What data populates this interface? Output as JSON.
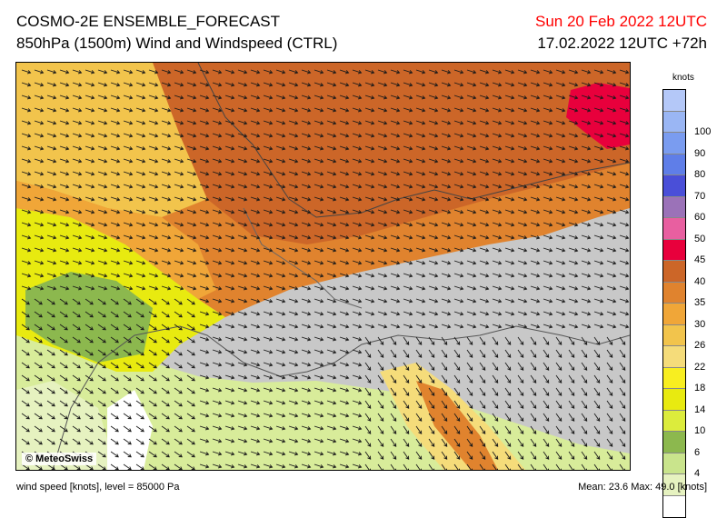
{
  "header": {
    "title_line1": "COSMO-2E ENSEMBLE_FORECAST",
    "title_line2": "850hPa (1500m) Wind and Windspeed (CTRL)",
    "valid_time": "Sun 20 Feb 2022 12UTC",
    "run_info": "17.02.2022 12UTC +72h"
  },
  "map": {
    "credit": "© MeteoSwiss"
  },
  "legend": {
    "unit": "knots",
    "levels": [
      {
        "label": "",
        "color": "#b4c8f8"
      },
      {
        "label": "100",
        "color": "#9ab6f4"
      },
      {
        "label": "90",
        "color": "#7a9cf0"
      },
      {
        "label": "80",
        "color": "#5f7ee8"
      },
      {
        "label": "70",
        "color": "#4a4fd8"
      },
      {
        "label": "60",
        "color": "#9b72b8"
      },
      {
        "label": "50",
        "color": "#e85fa0"
      },
      {
        "label": "45",
        "color": "#e8003c"
      },
      {
        "label": "40",
        "color": "#cc6628"
      },
      {
        "label": "35",
        "color": "#e0832e"
      },
      {
        "label": "30",
        "color": "#f0a638"
      },
      {
        "label": "26",
        "color": "#f2c44c"
      },
      {
        "label": "22",
        "color": "#f5dc7a"
      },
      {
        "label": "18",
        "color": "#f8ee20"
      },
      {
        "label": "14",
        "color": "#e8ea10"
      },
      {
        "label": "10",
        "color": "#dcec3c"
      },
      {
        "label": "6",
        "color": "#8cb84e"
      },
      {
        "label": "4",
        "color": "#c9e48c"
      },
      {
        "label": "",
        "color": "#e6f2c0"
      },
      {
        "label": "",
        "color": "#ffffff"
      }
    ]
  },
  "footer": {
    "left": "wind speed [knots], level = 85000 Pa",
    "right": "Mean:   23.6 Max:   49.0 [knots]"
  }
}
